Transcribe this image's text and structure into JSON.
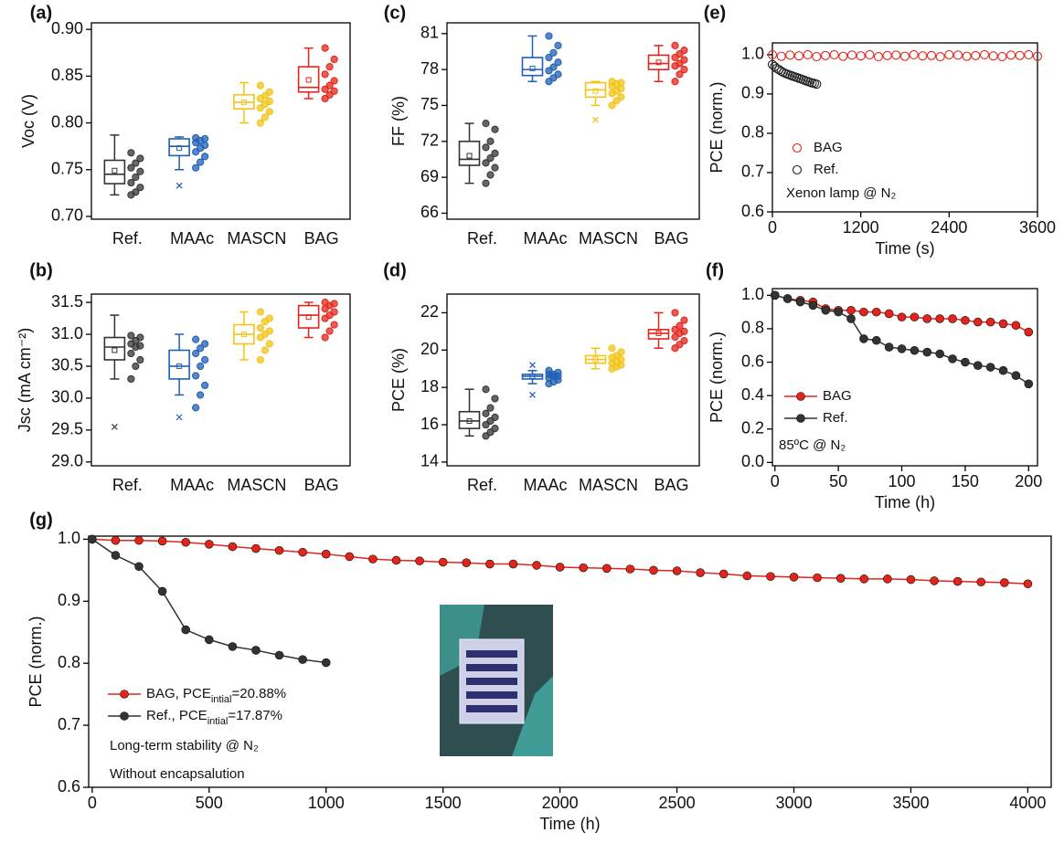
{
  "chart_data": [
    {
      "type": "box",
      "label": "(a)",
      "ylabel": "Voc (V)",
      "categories": [
        "Ref.",
        "MAAc",
        "MASCN",
        "BAG"
      ],
      "colors": [
        "#333333",
        "#1f5fb4",
        "#f2c418",
        "#e3241b"
      ],
      "ylim": [
        0.697,
        0.907
      ],
      "yticks": [
        {
          "value": 0.7,
          "label": "0.70"
        },
        0.75,
        {
          "value": 0.8,
          "label": "0.80"
        },
        0.85,
        {
          "value": 0.9,
          "label": "0.90"
        }
      ],
      "boxes": [
        {
          "min": 0.723,
          "q1": 0.735,
          "median": 0.745,
          "q3": 0.76,
          "max": 0.787,
          "mean": 0.749,
          "outliers": [],
          "points": [
            0.723,
            0.726,
            0.731,
            0.736,
            0.742,
            0.748,
            0.752,
            0.757,
            0.762,
            0.768
          ]
        },
        {
          "min": 0.75,
          "q1": 0.765,
          "median": 0.775,
          "q3": 0.783,
          "max": 0.785,
          "mean": 0.773,
          "outliers": [
            0.733
          ],
          "points": [
            0.752,
            0.758,
            0.764,
            0.769,
            0.773,
            0.776,
            0.779,
            0.781,
            0.783,
            0.784
          ]
        },
        {
          "min": 0.8,
          "q1": 0.815,
          "median": 0.822,
          "q3": 0.83,
          "max": 0.843,
          "mean": 0.822,
          "outliers": [],
          "points": [
            0.8,
            0.806,
            0.812,
            0.816,
            0.82,
            0.823,
            0.826,
            0.829,
            0.833,
            0.84
          ]
        },
        {
          "min": 0.826,
          "q1": 0.833,
          "median": 0.838,
          "q3": 0.86,
          "max": 0.88,
          "mean": 0.846,
          "outliers": [],
          "points": [
            0.826,
            0.83,
            0.834,
            0.836,
            0.84,
            0.845,
            0.852,
            0.86,
            0.868,
            0.88
          ]
        }
      ]
    },
    {
      "type": "box",
      "label": "(b)",
      "ylabel": "Jsc (mA cm⁻²)",
      "categories": [
        "Ref.",
        "MAAc",
        "MASCN",
        "BAG"
      ],
      "colors": [
        "#333333",
        "#1f5fb4",
        "#f2c418",
        "#e3241b"
      ],
      "ylim": [
        28.94,
        31.63
      ],
      "yticks": [
        {
          "value": 29,
          "label": "29.0"
        },
        29.5,
        {
          "value": 30,
          "label": "30.0"
        },
        30.5,
        {
          "value": 31,
          "label": "31.0"
        },
        31.5
      ],
      "boxes": [
        {
          "min": 30.3,
          "q1": 30.6,
          "median": 30.8,
          "q3": 30.95,
          "max": 31.3,
          "mean": 30.75,
          "outliers": [
            29.55
          ],
          "points": [
            30.3,
            30.5,
            30.6,
            30.7,
            30.8,
            30.82,
            30.85,
            30.9,
            30.95,
            30.98
          ]
        },
        {
          "min": 30.05,
          "q1": 30.3,
          "median": 30.5,
          "q3": 30.75,
          "max": 31.0,
          "mean": 30.5,
          "outliers": [
            29.7
          ],
          "points": [
            29.85,
            30.05,
            30.2,
            30.35,
            30.5,
            30.6,
            30.7,
            30.78,
            30.85,
            30.92
          ]
        },
        {
          "min": 30.6,
          "q1": 30.85,
          "median": 31.0,
          "q3": 31.15,
          "max": 31.35,
          "mean": 31.0,
          "outliers": [],
          "points": [
            30.6,
            30.75,
            30.85,
            30.95,
            31.0,
            31.05,
            31.1,
            31.2,
            31.25,
            31.35
          ]
        },
        {
          "min": 30.95,
          "q1": 31.1,
          "median": 31.3,
          "q3": 31.45,
          "max": 31.5,
          "mean": 31.27,
          "outliers": [],
          "points": [
            30.95,
            31.05,
            31.15,
            31.25,
            31.3,
            31.35,
            31.4,
            31.45,
            31.48,
            31.5
          ]
        }
      ]
    },
    {
      "type": "box",
      "label": "(c)",
      "ylabel": "FF (%)",
      "categories": [
        "Ref.",
        "MAAc",
        "MASCN",
        "BAG"
      ],
      "colors": [
        "#333333",
        "#1f5fb4",
        "#f2c418",
        "#e3241b"
      ],
      "ylim": [
        65.5,
        81.9
      ],
      "yticks": [
        66,
        69,
        72,
        75,
        78,
        81
      ],
      "boxes": [
        {
          "min": 68.5,
          "q1": 70.0,
          "median": 70.5,
          "q3": 72.0,
          "max": 73.5,
          "mean": 70.8,
          "outliers": [],
          "points": [
            68.5,
            69.2,
            69.8,
            70.2,
            70.6,
            71.0,
            71.5,
            72.0,
            73.0,
            73.5
          ]
        },
        {
          "min": 77.0,
          "q1": 77.5,
          "median": 78.0,
          "q3": 79.0,
          "max": 80.8,
          "mean": 78.1,
          "outliers": [],
          "points": [
            77.0,
            77.3,
            77.6,
            77.9,
            78.2,
            78.6,
            79.0,
            79.4,
            80.0,
            80.8
          ]
        },
        {
          "min": 75.0,
          "q1": 75.7,
          "median": 76.3,
          "q3": 76.9,
          "max": 77.0,
          "mean": 76.2,
          "outliers": [
            73.8
          ],
          "points": [
            75.0,
            75.4,
            75.7,
            76.0,
            76.2,
            76.4,
            76.6,
            76.8,
            76.9,
            77.0
          ]
        },
        {
          "min": 77.0,
          "q1": 78.0,
          "median": 78.5,
          "q3": 79.2,
          "max": 80.0,
          "mean": 78.6,
          "outliers": [],
          "points": [
            77.0,
            77.6,
            78.0,
            78.3,
            78.5,
            78.8,
            79.0,
            79.3,
            79.6,
            80.0
          ]
        }
      ]
    },
    {
      "type": "box",
      "label": "(d)",
      "ylabel": "PCE (%)",
      "categories": [
        "Ref.",
        "MAAc",
        "MASCN",
        "BAG"
      ],
      "colors": [
        "#333333",
        "#1f5fb4",
        "#f2c418",
        "#e3241b"
      ],
      "ylim": [
        13.8,
        23.0
      ],
      "yticks": [
        14,
        16,
        18,
        20,
        22
      ],
      "boxes": [
        {
          "min": 15.4,
          "q1": 15.8,
          "median": 16.2,
          "q3": 16.7,
          "max": 17.9,
          "mean": 16.2,
          "outliers": [],
          "points": [
            15.4,
            15.6,
            15.8,
            16.0,
            16.2,
            16.4,
            16.6,
            16.9,
            17.4,
            17.9
          ]
        },
        {
          "min": 18.2,
          "q1": 18.45,
          "median": 18.6,
          "q3": 18.7,
          "max": 18.9,
          "mean": 18.6,
          "outliers": [
            19.2,
            17.6
          ],
          "points": [
            18.2,
            18.3,
            18.4,
            18.5,
            18.6,
            18.6,
            18.7,
            18.7,
            18.8,
            18.9
          ]
        },
        {
          "min": 19.0,
          "q1": 19.3,
          "median": 19.5,
          "q3": 19.7,
          "max": 20.1,
          "mean": 19.5,
          "outliers": [],
          "points": [
            19.0,
            19.1,
            19.2,
            19.3,
            19.4,
            19.5,
            19.6,
            19.7,
            19.9,
            20.1
          ]
        },
        {
          "min": 20.1,
          "q1": 20.6,
          "median": 20.9,
          "q3": 21.1,
          "max": 22.0,
          "mean": 20.9,
          "outliers": [],
          "points": [
            20.1,
            20.3,
            20.5,
            20.7,
            20.9,
            21.0,
            21.1,
            21.3,
            21.6,
            22.0
          ]
        }
      ]
    },
    {
      "type": "scatter",
      "label": "(e)",
      "ylabel": "PCE (norm.)",
      "xlabel": "Time (s)",
      "xlim": [
        0,
        3600
      ],
      "xticks": [
        0,
        1200,
        2400,
        3600
      ],
      "ylim": [
        0.6,
        1.03
      ],
      "yticks": [
        0.6,
        0.7,
        0.8,
        0.9,
        {
          "value": 1,
          "label": "1.0"
        }
      ],
      "annotations": [
        "Xenon lamp @ N₂"
      ],
      "series": [
        {
          "name": "BAG",
          "color": "#e3241b",
          "x": [
            0,
            120,
            240,
            360,
            480,
            600,
            720,
            840,
            960,
            1080,
            1200,
            1320,
            1440,
            1560,
            1680,
            1800,
            1920,
            2040,
            2160,
            2280,
            2400,
            2520,
            2640,
            2760,
            2880,
            3000,
            3120,
            3240,
            3360,
            3480,
            3600
          ],
          "values": [
            1.0,
            0.996,
            0.999,
            0.997,
            1.0,
            0.995,
            0.998,
            1.0,
            0.996,
            0.999,
            0.997,
            1.0,
            0.995,
            0.998,
            0.999,
            0.996,
            1.0,
            0.997,
            0.998,
            0.995,
            1.0,
            0.999,
            0.996,
            0.998,
            1.0,
            0.997,
            0.995,
            0.999,
            0.998,
            1.0,
            0.996
          ]
        },
        {
          "name": "Ref.",
          "color": "#222222",
          "x": [
            0,
            30,
            60,
            90,
            120,
            150,
            180,
            210,
            240,
            270,
            300,
            330,
            360,
            390,
            420,
            450,
            480,
            510,
            540,
            570,
            600
          ],
          "values": [
            0.975,
            0.97,
            0.965,
            0.962,
            0.958,
            0.955,
            0.952,
            0.95,
            0.948,
            0.946,
            0.944,
            0.942,
            0.94,
            0.938,
            0.936,
            0.934,
            0.932,
            0.93,
            0.928,
            0.927,
            0.925
          ]
        }
      ]
    },
    {
      "type": "line",
      "label": "(f)",
      "ylabel": "PCE (norm.)",
      "xlabel": "Time (h)",
      "xlim": [
        -2,
        207
      ],
      "xticks": [
        0,
        50,
        100,
        150,
        200
      ],
      "ylim": [
        -0.02,
        1.04
      ],
      "yticks": [
        {
          "value": 0,
          "label": "0.0"
        },
        0.2,
        0.4,
        0.6,
        0.8,
        {
          "value": 1,
          "label": "1.0"
        }
      ],
      "annotations": [
        "85ºC @ N₂"
      ],
      "series": [
        {
          "name": "BAG",
          "color": "#e3241b",
          "x": [
            0,
            10,
            20,
            30,
            40,
            50,
            60,
            70,
            80,
            90,
            100,
            110,
            120,
            130,
            140,
            150,
            160,
            170,
            180,
            190,
            200
          ],
          "values": [
            1.0,
            0.98,
            0.97,
            0.96,
            0.92,
            0.91,
            0.91,
            0.9,
            0.9,
            0.89,
            0.87,
            0.87,
            0.86,
            0.86,
            0.86,
            0.85,
            0.84,
            0.84,
            0.83,
            0.82,
            0.78
          ]
        },
        {
          "name": "Ref.",
          "color": "#333333",
          "x": [
            0,
            10,
            20,
            30,
            40,
            50,
            60,
            70,
            80,
            90,
            100,
            110,
            120,
            130,
            140,
            150,
            160,
            170,
            180,
            190,
            200
          ],
          "values": [
            1.0,
            0.98,
            0.96,
            0.94,
            0.91,
            0.9,
            0.86,
            0.74,
            0.73,
            0.69,
            0.68,
            0.67,
            0.66,
            0.65,
            0.62,
            0.6,
            0.58,
            0.57,
            0.55,
            0.52,
            0.47
          ]
        }
      ]
    },
    {
      "type": "line",
      "label": "(g)",
      "ylabel": "PCE (norm.)",
      "xlabel": "Time (h)",
      "xlim": [
        -15,
        4100
      ],
      "xticks": [
        0,
        500,
        1000,
        1500,
        2000,
        2500,
        3000,
        3500,
        4000
      ],
      "ylim": [
        0.6,
        1.005
      ],
      "yticks": [
        0.6,
        0.7,
        0.8,
        0.9,
        {
          "value": 1,
          "label": "1.0"
        }
      ],
      "annotations": [
        "Long-term stability @ N₂",
        "Without encapsalution"
      ],
      "series": [
        {
          "name": "BAG, PCE",
          "name_sub": "intial",
          "name_suffix": "=20.88%",
          "color": "#e3241b",
          "x": [
            0,
            100,
            200,
            300,
            400,
            500,
            600,
            700,
            800,
            900,
            1000,
            1100,
            1200,
            1300,
            1400,
            1500,
            1600,
            1700,
            1800,
            1900,
            2000,
            2100,
            2200,
            2300,
            2400,
            2500,
            2600,
            2700,
            2800,
            2900,
            3000,
            3100,
            3200,
            3300,
            3400,
            3500,
            3600,
            3700,
            3800,
            3900,
            4000
          ],
          "values": [
            1.0,
            0.998,
            0.998,
            0.997,
            0.995,
            0.992,
            0.988,
            0.985,
            0.982,
            0.979,
            0.976,
            0.972,
            0.968,
            0.966,
            0.965,
            0.963,
            0.962,
            0.96,
            0.96,
            0.958,
            0.955,
            0.954,
            0.953,
            0.952,
            0.95,
            0.949,
            0.946,
            0.944,
            0.941,
            0.94,
            0.939,
            0.938,
            0.937,
            0.936,
            0.936,
            0.935,
            0.933,
            0.932,
            0.931,
            0.93,
            0.928
          ]
        },
        {
          "name": "Ref.,  PCE",
          "name_sub": "intial",
          "name_suffix": "=17.87%",
          "color": "#333333",
          "x": [
            0,
            100,
            200,
            300,
            400,
            500,
            600,
            700,
            800,
            900,
            1000
          ],
          "values": [
            1.0,
            0.974,
            0.956,
            0.916,
            0.854,
            0.838,
            0.827,
            0.821,
            0.813,
            0.806,
            0.801
          ]
        }
      ]
    }
  ]
}
